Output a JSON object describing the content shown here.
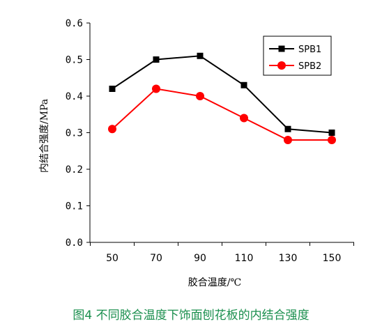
{
  "caption": "图4 不同胶合温度下饰面刨花板的内结合强度",
  "chart_data": {
    "type": "line",
    "title": "",
    "xlabel": "胶合温度/℃",
    "ylabel": "内结合强度/MPa",
    "x": [
      50,
      70,
      90,
      110,
      130,
      150
    ],
    "x_tick_labels": [
      "50",
      "70",
      "90",
      "110",
      "130",
      "150"
    ],
    "ylim": [
      0.0,
      0.6
    ],
    "y_ticks": [
      0.0,
      0.1,
      0.2,
      0.3,
      0.4,
      0.5,
      0.6
    ],
    "y_tick_labels": [
      "0.0",
      "0.1",
      "0.2",
      "0.3",
      "0.4",
      "0.5",
      "0.6"
    ],
    "grid": false,
    "legend_position": "top-right",
    "series": [
      {
        "name": "SPB1",
        "values": [
          0.42,
          0.5,
          0.51,
          0.43,
          0.31,
          0.3
        ],
        "color": "#000000",
        "marker": "square"
      },
      {
        "name": "SPB2",
        "values": [
          0.31,
          0.42,
          0.4,
          0.34,
          0.28,
          0.28
        ],
        "color": "#ff0000",
        "marker": "circle"
      }
    ]
  }
}
